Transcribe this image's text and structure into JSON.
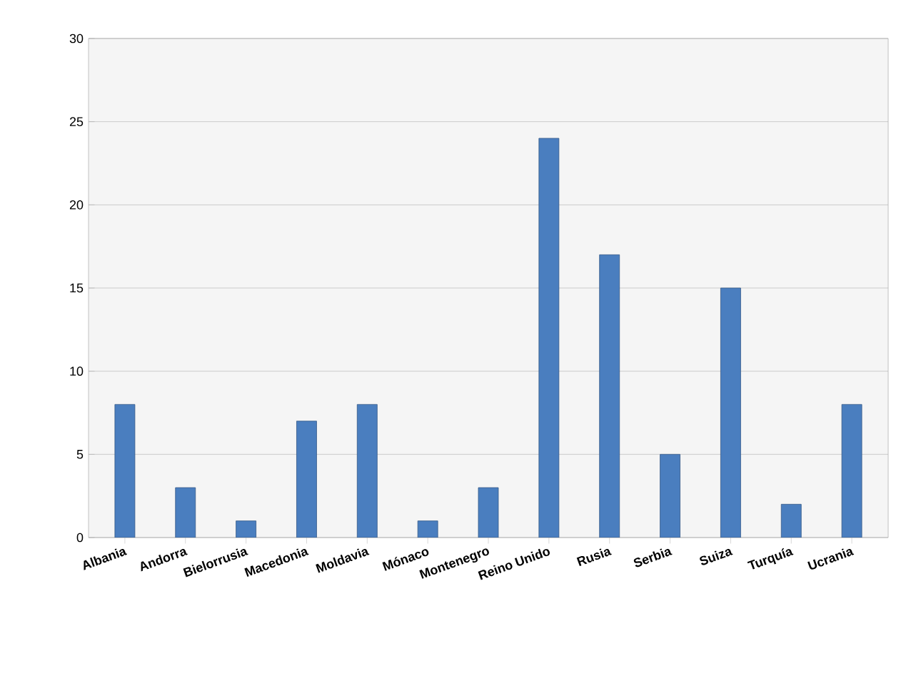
{
  "chart_data": {
    "type": "bar",
    "categories": [
      "Albania",
      "Andorra",
      "Bielorrusia",
      "Macedonia",
      "Moldavia",
      "Mónaco",
      "Montenegro",
      "Reino Unido",
      "Rusia",
      "Serbia",
      "Suiza",
      "Turquía",
      "Ucrania"
    ],
    "values": [
      8,
      3,
      1,
      7,
      8,
      1,
      3,
      24,
      17,
      5,
      15,
      2,
      8
    ],
    "color": "#4a7ebf",
    "ylim": [
      0,
      30
    ],
    "yticks": [
      0,
      5,
      10,
      15,
      20,
      25,
      30
    ],
    "grid": "y"
  }
}
